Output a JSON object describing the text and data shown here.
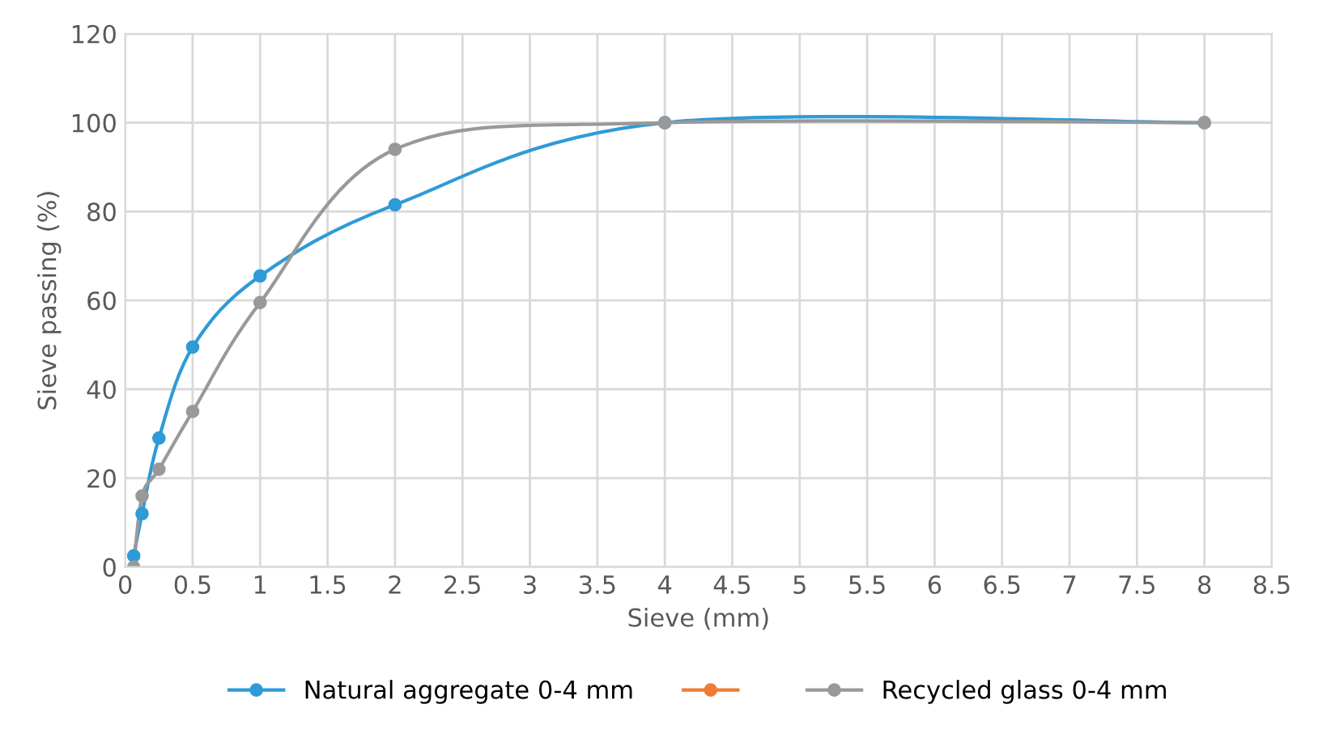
{
  "chart_data": {
    "type": "line",
    "xlabel": "Sieve (mm)",
    "ylabel": "Sieve passing (%)",
    "x": [
      0.063,
      0.125,
      0.25,
      0.5,
      1,
      2,
      4,
      8
    ],
    "series": [
      {
        "name": "Natural aggregate 0-4 mm",
        "color": "#2e9bd6",
        "values": [
          2.5,
          12,
          29,
          49.5,
          65.5,
          81.5,
          100,
          100
        ]
      },
      {
        "color": "#ed7d31",
        "values": [
          null,
          null,
          null,
          null,
          null,
          null,
          null,
          null
        ]
      },
      {
        "name": "Recycled glass 0-4 mm",
        "color": "#999999",
        "values": [
          0,
          16,
          22,
          35,
          59.5,
          94,
          100,
          100
        ]
      }
    ],
    "xlim": [
      0,
      8.5
    ],
    "xticks": [
      0,
      0.5,
      1,
      1.5,
      2,
      2.5,
      3,
      3.5,
      4,
      4.5,
      5,
      5.5,
      6,
      6.5,
      7,
      7.5,
      8,
      8.5
    ],
    "ylim": [
      0,
      120
    ],
    "yticks": [
      0,
      20,
      40,
      60,
      80,
      100,
      120
    ],
    "grid": true,
    "legend": "bottom",
    "marker": "circle",
    "line_style": "solid"
  }
}
